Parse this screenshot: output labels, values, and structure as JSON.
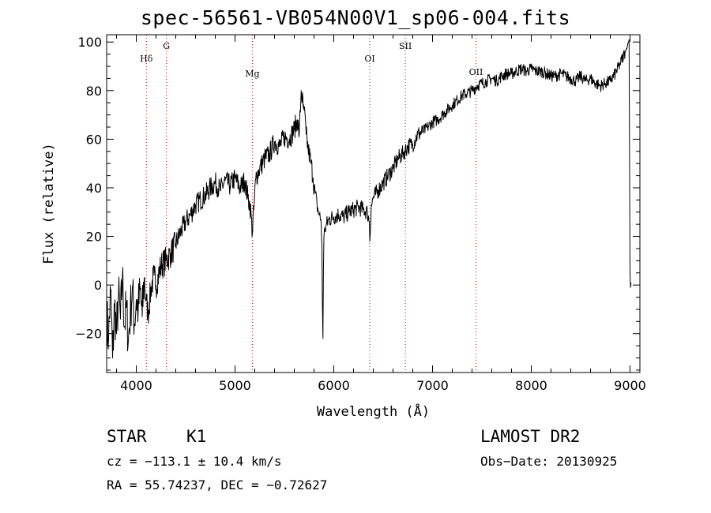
{
  "page": {
    "title": "spec-56561-VB054N00V1_sp06-004.fits",
    "xlabel": "Wavelength (Å)",
    "ylabel": "Flux (relative)"
  },
  "info": {
    "object_type": "STAR",
    "subclass": "K1",
    "survey": "LAMOST DR2",
    "cz": "cz = −113.1 ± 10.4 km/s",
    "obs_date": "Obs−Date: 20130925",
    "coords": "RA =  55.74237, DEC =  −0.72627"
  },
  "chart_data": {
    "type": "line",
    "title": "spec-56561-VB054N00V1_sp06-004.fits",
    "xlabel": "Wavelength (Å)",
    "ylabel": "Flux (relative)",
    "xlim": [
      3700,
      9100
    ],
    "ylim": [
      -36,
      103
    ],
    "x_ticks": [
      4000,
      5000,
      6000,
      7000,
      8000,
      9000
    ],
    "y_ticks": [
      -20,
      0,
      20,
      40,
      60,
      80,
      100
    ],
    "grid": false,
    "series_color": "#000000",
    "line_marker_color": "#cc0000",
    "spectral_lines": [
      {
        "label": "Hδ",
        "wavelength": 4102
      },
      {
        "label": "G",
        "wavelength": 4305
      },
      {
        "label": "Mg",
        "wavelength": 5175
      },
      {
        "label": "OI",
        "wavelength": 6364
      },
      {
        "label": "SII",
        "wavelength": 6725
      },
      {
        "label": "OII",
        "wavelength": 7440
      }
    ],
    "series": [
      {
        "x": [
          3700,
          3720,
          3740,
          3760,
          3780,
          3800,
          3820,
          3840,
          3860,
          3880,
          3900,
          3920,
          3940,
          3960,
          3980,
          4000,
          4020,
          4040,
          4060,
          4080,
          4100,
          4120,
          4150,
          4180,
          4200,
          4250,
          4300,
          4350,
          4400,
          4450,
          4500,
          4550,
          4600,
          4650,
          4700,
          4750,
          4800,
          4850,
          4900,
          4950,
          5000,
          5050,
          5100,
          5130,
          5150,
          5165,
          5175,
          5190,
          5210,
          5250,
          5300,
          5350,
          5400,
          5450,
          5500,
          5550,
          5600,
          5630,
          5650,
          5670,
          5690,
          5700,
          5720,
          5740,
          5770,
          5790,
          5810,
          5830,
          5850,
          5870,
          5880,
          5885,
          5890,
          5895,
          5900,
          5910,
          5920,
          5950,
          6000,
          6050,
          6100,
          6150,
          6200,
          6250,
          6300,
          6340,
          6360,
          6365,
          6380,
          6400,
          6450,
          6500,
          6550,
          6600,
          6650,
          6700,
          6750,
          6800,
          6850,
          6900,
          6950,
          7000,
          7050,
          7100,
          7150,
          7200,
          7250,
          7300,
          7350,
          7400,
          7450,
          7500,
          7550,
          7600,
          7650,
          7700,
          7750,
          7800,
          7850,
          7900,
          7950,
          8000,
          8050,
          8100,
          8150,
          8200,
          8250,
          8300,
          8350,
          8400,
          8450,
          8500,
          8550,
          8600,
          8650,
          8700,
          8750,
          8800,
          8850,
          8900,
          8950,
          8970,
          8990,
          9000,
          9005,
          9010
        ],
        "y": [
          -12,
          -22,
          -2,
          -30,
          -8,
          -20,
          -4,
          -14,
          4,
          -17,
          -9,
          -23,
          -11,
          -1,
          -16,
          -6,
          -10,
          -2,
          -13,
          3,
          -6,
          -12,
          -1,
          4,
          0,
          8,
          10,
          13,
          17,
          22,
          26,
          29,
          33,
          35,
          37,
          40,
          42,
          39,
          43,
          41,
          44,
          40,
          43,
          36,
          33,
          28,
          21,
          31,
          44,
          48,
          52,
          54,
          59,
          57,
          61,
          60,
          64,
          68,
          62,
          80,
          73,
          72,
          62,
          56,
          50,
          44,
          38,
          33,
          29,
          27,
          17,
          -8,
          -22,
          6,
          19,
          23,
          24,
          27,
          28,
          29,
          28,
          30,
          31,
          32,
          31,
          30,
          26,
          18,
          33,
          36,
          39,
          42,
          45,
          48,
          52,
          54,
          57,
          58,
          62,
          63,
          65,
          67,
          68,
          70,
          72,
          74,
          76,
          78,
          79,
          80,
          82,
          83,
          84,
          85,
          84,
          86,
          87,
          87,
          88,
          89,
          88,
          89,
          88,
          88,
          87,
          86,
          86,
          87,
          86,
          85,
          84,
          86,
          84,
          85,
          83,
          82,
          83,
          84,
          87,
          91,
          96,
          98,
          101,
          5,
          -1,
          1
        ]
      }
    ]
  }
}
